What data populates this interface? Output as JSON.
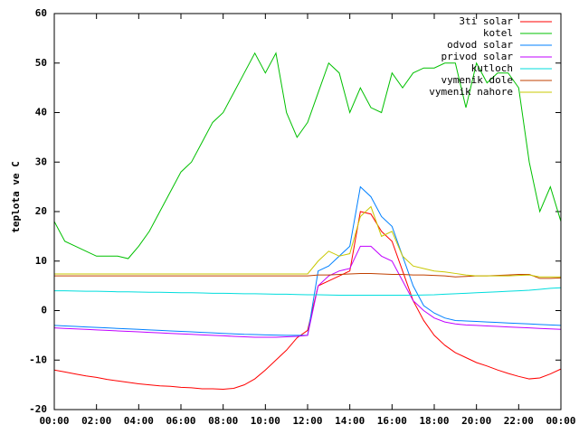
{
  "chart_data": {
    "type": "line",
    "ylabel": "teplota ve C",
    "x": [
      0,
      0.5,
      1,
      1.5,
      2,
      2.5,
      3,
      3.5,
      4,
      4.5,
      5,
      5.5,
      6,
      6.5,
      7,
      7.5,
      8,
      8.5,
      9,
      9.5,
      10,
      10.5,
      11,
      11.5,
      12,
      12.5,
      13,
      13.5,
      14,
      14.5,
      15,
      15.5,
      16,
      16.5,
      17,
      17.5,
      18,
      18.5,
      19,
      19.5,
      20,
      20.5,
      21,
      21.5,
      22,
      22.5,
      23,
      23.5,
      24
    ],
    "xlim": [
      0,
      24
    ],
    "xticks": [
      {
        "value": 0,
        "label": "00:00"
      },
      {
        "value": 2,
        "label": "02:00"
      },
      {
        "value": 4,
        "label": "04:00"
      },
      {
        "value": 6,
        "label": "06:00"
      },
      {
        "value": 8,
        "label": "08:00"
      },
      {
        "value": 10,
        "label": "10:00"
      },
      {
        "value": 12,
        "label": "12:00"
      },
      {
        "value": 14,
        "label": "14:00"
      },
      {
        "value": 16,
        "label": "16:00"
      },
      {
        "value": 18,
        "label": "18:00"
      },
      {
        "value": 20,
        "label": "20:00"
      },
      {
        "value": 22,
        "label": "22:00"
      },
      {
        "value": 24,
        "label": "00:00"
      }
    ],
    "ylim": [
      -20,
      60
    ],
    "yticks": [
      -20,
      -10,
      0,
      10,
      20,
      30,
      40,
      50,
      60
    ],
    "grid": false,
    "legend": "top-right",
    "series": [
      {
        "name": "3ti solar",
        "color": "#ff0000",
        "values": [
          -12,
          -12.4,
          -12.8,
          -13.2,
          -13.5,
          -13.9,
          -14.2,
          -14.5,
          -14.8,
          -15,
          -15.2,
          -15.3,
          -15.5,
          -15.6,
          -15.8,
          -15.8,
          -15.9,
          -15.7,
          -15,
          -13.8,
          -12,
          -10,
          -8,
          -5.5,
          -4,
          5,
          6,
          7,
          8,
          20,
          19.5,
          16,
          14,
          8,
          2,
          -2,
          -5,
          -7,
          -8.5,
          -9.5,
          -10.5,
          -11.2,
          -12,
          -12.7,
          -13.3,
          -13.8,
          -13.6,
          -12.8,
          -11.8
        ]
      },
      {
        "name": "kotel",
        "color": "#00c000",
        "values": [
          18,
          14,
          13,
          12,
          11,
          11,
          11,
          10.5,
          13,
          16,
          20,
          24,
          28,
          30,
          34,
          38,
          40,
          44,
          48,
          52,
          48,
          52,
          40,
          35,
          38,
          44,
          50,
          48,
          40,
          45,
          41,
          40,
          48,
          45,
          48,
          49,
          49,
          50,
          50,
          41,
          50,
          46,
          48,
          48,
          45,
          30,
          20,
          25,
          18
        ]
      },
      {
        "name": "odvod solar",
        "color": "#0080ff",
        "values": [
          -3,
          -3.1,
          -3.2,
          -3.3,
          -3.4,
          -3.5,
          -3.6,
          -3.7,
          -3.8,
          -3.9,
          -4,
          -4.1,
          -4.2,
          -4.3,
          -4.4,
          -4.5,
          -4.6,
          -4.7,
          -4.8,
          -4.85,
          -4.9,
          -4.95,
          -5,
          -5,
          -5,
          8,
          9,
          11,
          13,
          25,
          23,
          19,
          17,
          11,
          5,
          1,
          -0.5,
          -1.5,
          -2,
          -2.1,
          -2.2,
          -2.3,
          -2.4,
          -2.5,
          -2.6,
          -2.7,
          -2.8,
          -2.9,
          -3
        ]
      },
      {
        "name": "privod solar",
        "color": "#c000ff",
        "values": [
          -3.5,
          -3.6,
          -3.7,
          -3.8,
          -3.9,
          -4,
          -4.1,
          -4.2,
          -4.3,
          -4.4,
          -4.5,
          -4.6,
          -4.7,
          -4.8,
          -4.9,
          -5,
          -5.1,
          -5.2,
          -5.3,
          -5.4,
          -5.4,
          -5.4,
          -5.3,
          -5.2,
          -5,
          5,
          7,
          8,
          8.5,
          13,
          13,
          11,
          10,
          6,
          2,
          0,
          -1.5,
          -2.3,
          -2.7,
          -2.9,
          -3,
          -3.1,
          -3.2,
          -3.3,
          -3.4,
          -3.5,
          -3.6,
          -3.7,
          -3.8
        ]
      },
      {
        "name": "kutloch",
        "color": "#00dddd",
        "values": [
          4,
          4,
          3.95,
          3.9,
          3.9,
          3.85,
          3.8,
          3.8,
          3.75,
          3.7,
          3.7,
          3.65,
          3.6,
          3.6,
          3.55,
          3.5,
          3.5,
          3.45,
          3.4,
          3.4,
          3.35,
          3.3,
          3.3,
          3.25,
          3.2,
          3.2,
          3.15,
          3.1,
          3.1,
          3.1,
          3.1,
          3.1,
          3.1,
          3.1,
          3.1,
          3.15,
          3.2,
          3.3,
          3.4,
          3.5,
          3.6,
          3.7,
          3.8,
          3.9,
          4,
          4.1,
          4.3,
          4.5,
          4.6
        ]
      },
      {
        "name": "vymenik dole",
        "color": "#c04000",
        "values": [
          7,
          7,
          7,
          7,
          7,
          7,
          7,
          7,
          7,
          7,
          7,
          7,
          7,
          7,
          7,
          7,
          7,
          7,
          7,
          7,
          7,
          7,
          7,
          7,
          7,
          7.2,
          7.2,
          7.3,
          7.4,
          7.5,
          7.5,
          7.4,
          7.3,
          7.3,
          7.2,
          7.2,
          7.1,
          7,
          6.8,
          6.9,
          7,
          7,
          7.1,
          7.2,
          7.3,
          7.3,
          6.5,
          6.5,
          6.6
        ]
      },
      {
        "name": "vymenik nahore",
        "color": "#c8c800",
        "values": [
          7.4,
          7.4,
          7.4,
          7.4,
          7.4,
          7.4,
          7.4,
          7.4,
          7.4,
          7.4,
          7.4,
          7.4,
          7.4,
          7.4,
          7.4,
          7.4,
          7.4,
          7.4,
          7.4,
          7.4,
          7.4,
          7.4,
          7.4,
          7.4,
          7.4,
          10,
          12,
          11,
          11.5,
          19,
          21,
          15,
          16,
          11,
          9,
          8.5,
          8,
          7.8,
          7.5,
          7.2,
          7,
          7,
          7,
          7,
          7.1,
          7.2,
          6.8,
          6.8,
          6.8
        ]
      }
    ]
  }
}
